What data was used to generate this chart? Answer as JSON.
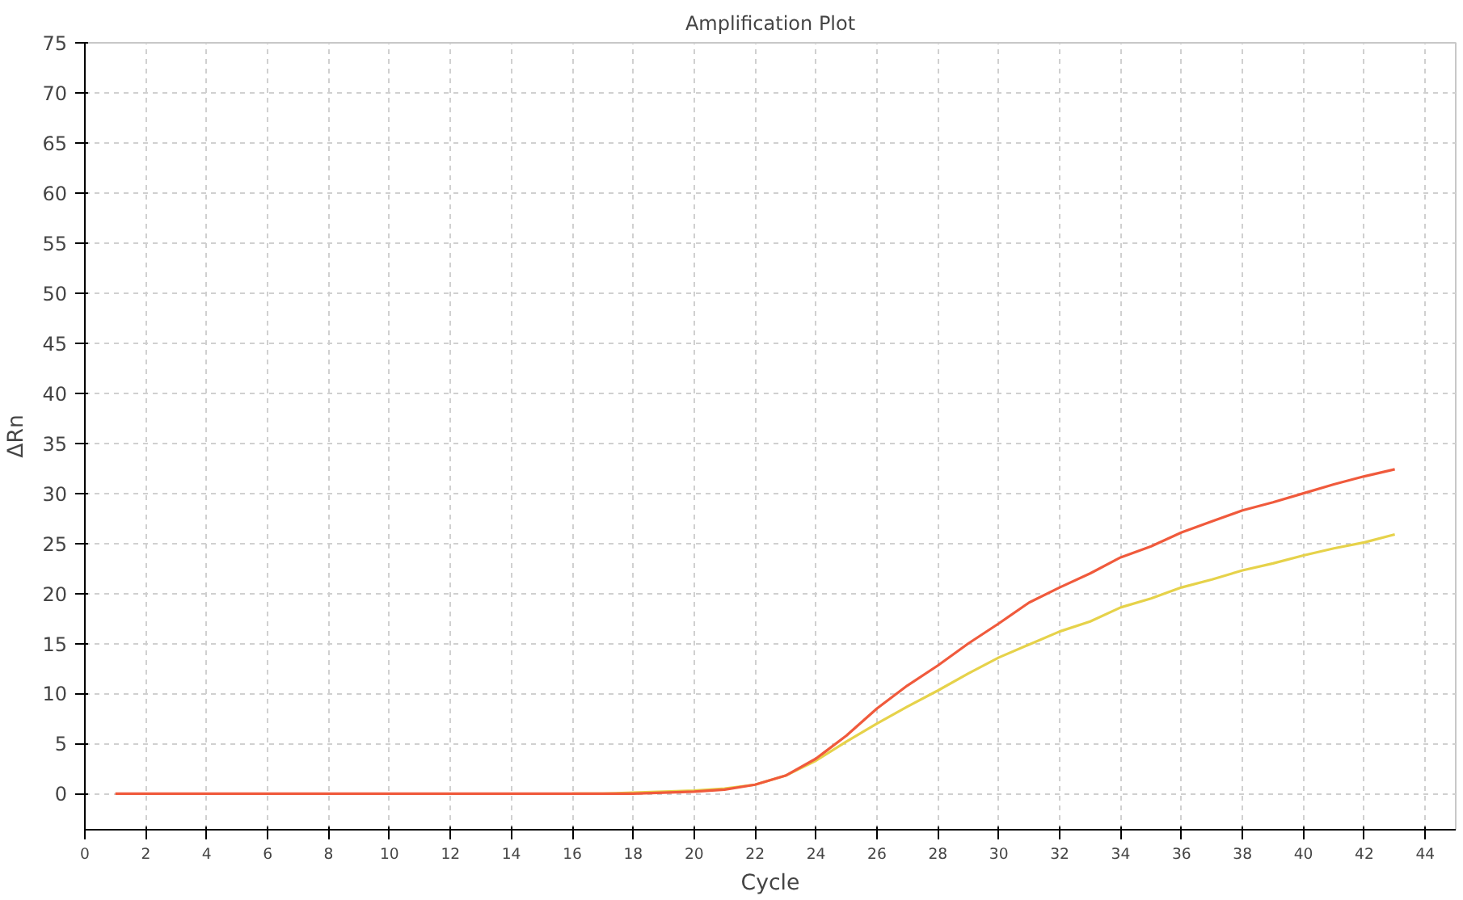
{
  "chart_data": {
    "type": "line",
    "title": "Amplification Plot",
    "xlabel": "Cycle",
    "ylabel": "ΔRn",
    "x": [
      1,
      2,
      3,
      4,
      5,
      6,
      7,
      8,
      9,
      10,
      11,
      12,
      13,
      14,
      15,
      16,
      17,
      18,
      19,
      20,
      21,
      22,
      23,
      24,
      25,
      26,
      27,
      28,
      29,
      30,
      31,
      32,
      33,
      34,
      35,
      36,
      37,
      38,
      39,
      40,
      41,
      42,
      43
    ],
    "series": [
      {
        "color": "#e6d24a",
        "x": [
          16,
          17,
          18,
          19,
          20,
          21,
          22,
          23,
          24,
          25,
          26,
          27,
          28,
          29,
          30,
          31,
          32,
          33,
          34,
          35,
          36,
          37,
          38,
          39,
          40,
          41,
          42,
          43
        ],
        "values": [
          0,
          0,
          0.1,
          0.2,
          0.3,
          0.5,
          0.9,
          1.8,
          3.3,
          5.2,
          7,
          8.7,
          10.3,
          12,
          13.6,
          14.9,
          16.2,
          17.2,
          18.6,
          19.5,
          20.6,
          21.4,
          22.3,
          23,
          23.8,
          24.5,
          25.1,
          25.9
        ]
      },
      {
        "color": "#f05a3c",
        "values": [
          0,
          0,
          0,
          0,
          0,
          0,
          0,
          0,
          0,
          0,
          0,
          0,
          0,
          0,
          0,
          0,
          0,
          0,
          0.1,
          0.2,
          0.4,
          0.9,
          1.8,
          3.5,
          5.8,
          8.5,
          10.8,
          12.8,
          15,
          17,
          19.1,
          20.6,
          22,
          23.6,
          24.7,
          26.1,
          27.2,
          28.3,
          29.1,
          30,
          30.9,
          31.7,
          32.4
        ]
      }
    ],
    "xlim": [
      0,
      45
    ],
    "xticks": [
      0,
      2,
      4,
      6,
      8,
      10,
      12,
      14,
      16,
      18,
      20,
      22,
      24,
      26,
      28,
      30,
      32,
      34,
      36,
      38,
      40,
      42,
      44
    ],
    "ylim": [
      -3.6,
      75
    ],
    "yticks": [
      0,
      5,
      10,
      15,
      20,
      25,
      30,
      35,
      40,
      45,
      50,
      55,
      60,
      65,
      70,
      75
    ],
    "grid": true,
    "line_style": "solid",
    "marker": "none"
  }
}
